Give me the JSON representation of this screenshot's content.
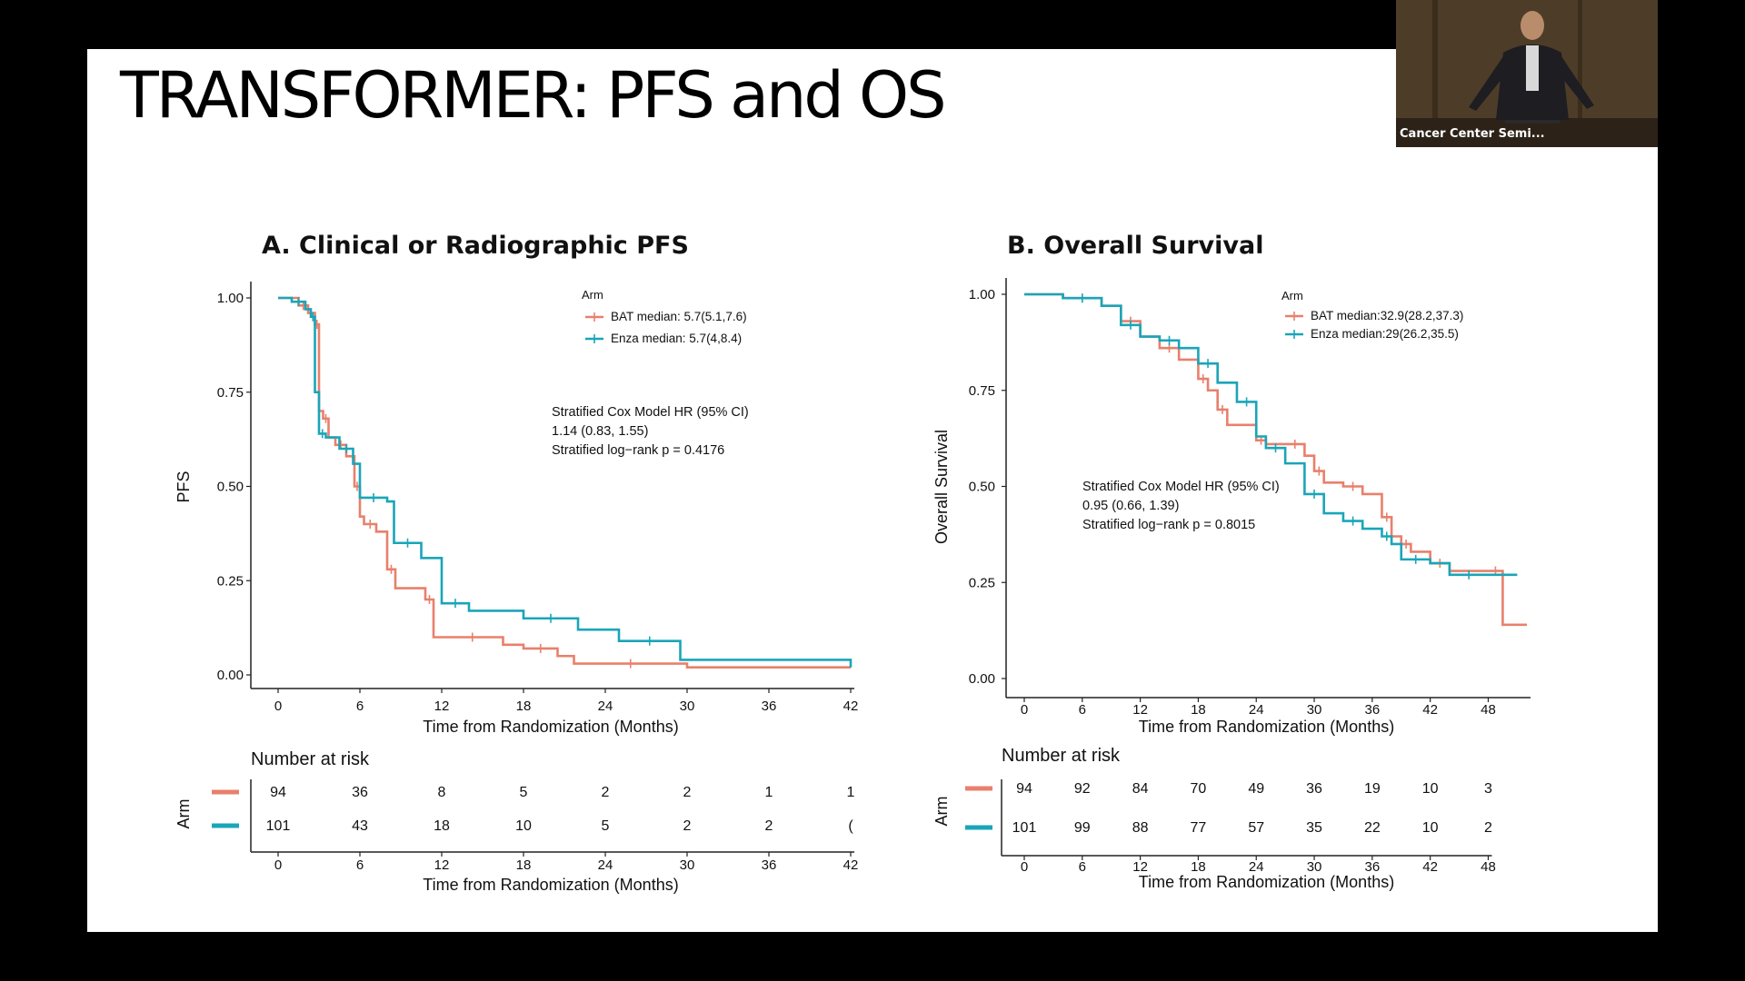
{
  "slide": {
    "title": "TRANSFORMER:  PFS and OS"
  },
  "webcam": {
    "label": "Cancer Center Semi..."
  },
  "colors": {
    "bat": "#e8806c",
    "enza": "#1aa5b8"
  },
  "chart_data": [
    {
      "type": "line",
      "panel_title": "A.  Clinical or Radiographic PFS",
      "xlabel": "Time from Randomization (Months)",
      "ylabel": "PFS",
      "xlim": [
        0,
        42
      ],
      "ylim": [
        0,
        1
      ],
      "xticks": [
        0,
        6,
        12,
        18,
        24,
        30,
        36,
        42
      ],
      "yticks": [
        "0.00",
        "0.25",
        "0.50",
        "0.75",
        "1.00"
      ],
      "legend": {
        "title": "Arm",
        "position": "top-right",
        "entries": [
          "BAT median: 5.7(5.1,7.6)",
          "Enza median: 5.7(4,8.4)"
        ]
      },
      "annotation": [
        "Stratified Cox Model HR (95% CI)",
        "1.14 (0.83, 1.55)",
        "Stratified log−rank p = 0.4176"
      ],
      "series": [
        {
          "name": "BAT median: 5.7(5.1,7.6)",
          "x": [
            0,
            1.5,
            2.2,
            2.7,
            3.0,
            3.3,
            3.7,
            4.2,
            5.0,
            5.6,
            6.0,
            6.3,
            7.2,
            8.0,
            8.6,
            10.8,
            11.4,
            12.0,
            16.5,
            18.0,
            20.5,
            21.7,
            30.0,
            42.0
          ],
          "y": [
            1.0,
            0.98,
            0.96,
            0.93,
            0.7,
            0.68,
            0.63,
            0.61,
            0.58,
            0.5,
            0.42,
            0.4,
            0.38,
            0.28,
            0.23,
            0.2,
            0.1,
            0.1,
            0.08,
            0.07,
            0.05,
            0.03,
            0.02,
            0.02
          ]
        },
        {
          "name": "Enza median: 5.7(4,8.4)",
          "x": [
            0,
            1.0,
            2.0,
            2.4,
            2.7,
            3.0,
            3.5,
            4.5,
            5.5,
            6.0,
            8.0,
            8.5,
            10.5,
            12.0,
            14.0,
            18.0,
            22.0,
            25.0,
            29.5,
            42.0
          ],
          "y": [
            1.0,
            0.99,
            0.97,
            0.95,
            0.75,
            0.64,
            0.63,
            0.6,
            0.56,
            0.47,
            0.46,
            0.35,
            0.31,
            0.19,
            0.17,
            0.15,
            0.12,
            0.09,
            0.04,
            0.02
          ]
        }
      ],
      "risk_table": {
        "title": "Number at risk",
        "row_label": "Arm",
        "x": [
          0,
          6,
          12,
          18,
          24,
          30,
          36,
          42
        ],
        "rows": [
          {
            "values": [
              "94",
              "36",
              "8",
              "5",
              "2",
              "2",
              "1",
              "1"
            ]
          },
          {
            "values": [
              "101",
              "43",
              "18",
              "10",
              "5",
              "2",
              "2",
              "("
            ]
          }
        ],
        "xlabel": "Time from Randomization (Months)"
      }
    },
    {
      "type": "line",
      "panel_title": "B. Overall Survival",
      "xlabel": "Time from Randomization (Months)",
      "ylabel": "Overall Survival",
      "xlim": [
        0,
        52
      ],
      "ylim": [
        0,
        1
      ],
      "xticks": [
        0,
        6,
        12,
        18,
        24,
        30,
        36,
        42,
        48
      ],
      "yticks": [
        "0.00",
        "0.25",
        "0.50",
        "0.75",
        "1.00"
      ],
      "legend": {
        "title": "Arm",
        "position": "top-right",
        "entries": [
          "BAT median:32.9(28.2,37.3)",
          "Enza median:29(26.2,35.5)"
        ]
      },
      "annotation": [
        "Stratified Cox Model HR (95% CI)",
        "0.95 (0.66, 1.39)",
        "Stratified log−rank p = 0.8015"
      ],
      "series": [
        {
          "name": "BAT median:32.9(28.2,37.3)",
          "x": [
            0,
            4,
            8,
            10,
            12,
            14,
            16,
            18,
            19,
            20,
            21,
            24,
            25,
            27,
            29,
            30,
            31,
            33,
            35,
            37,
            38,
            39,
            40,
            42,
            44,
            48,
            49.5,
            52
          ],
          "y": [
            1.0,
            0.99,
            0.97,
            0.93,
            0.89,
            0.86,
            0.83,
            0.78,
            0.75,
            0.7,
            0.66,
            0.62,
            0.61,
            0.61,
            0.58,
            0.54,
            0.51,
            0.5,
            0.48,
            0.42,
            0.37,
            0.35,
            0.33,
            0.3,
            0.28,
            0.28,
            0.14,
            0.14
          ]
        },
        {
          "name": "Enza median:29(26.2,35.5)",
          "x": [
            0,
            4,
            8,
            10,
            12,
            14,
            16,
            18,
            20,
            22,
            24,
            25,
            27,
            29,
            31,
            33,
            35,
            37,
            38,
            39,
            42,
            44,
            48,
            51
          ],
          "y": [
            1.0,
            0.99,
            0.97,
            0.92,
            0.89,
            0.88,
            0.86,
            0.82,
            0.77,
            0.72,
            0.63,
            0.6,
            0.56,
            0.48,
            0.43,
            0.41,
            0.39,
            0.37,
            0.35,
            0.31,
            0.3,
            0.27,
            0.27,
            0.27
          ]
        }
      ],
      "risk_table": {
        "title": "Number at risk",
        "row_label": "Arm",
        "x": [
          0,
          6,
          12,
          18,
          24,
          30,
          36,
          42,
          48
        ],
        "rows": [
          {
            "values": [
              "94",
              "92",
              "84",
              "70",
              "49",
              "36",
              "19",
              "10",
              "3"
            ]
          },
          {
            "values": [
              "101",
              "99",
              "88",
              "77",
              "57",
              "35",
              "22",
              "10",
              "2"
            ]
          }
        ],
        "xlabel": "Time from Randomization (Months)"
      }
    }
  ]
}
